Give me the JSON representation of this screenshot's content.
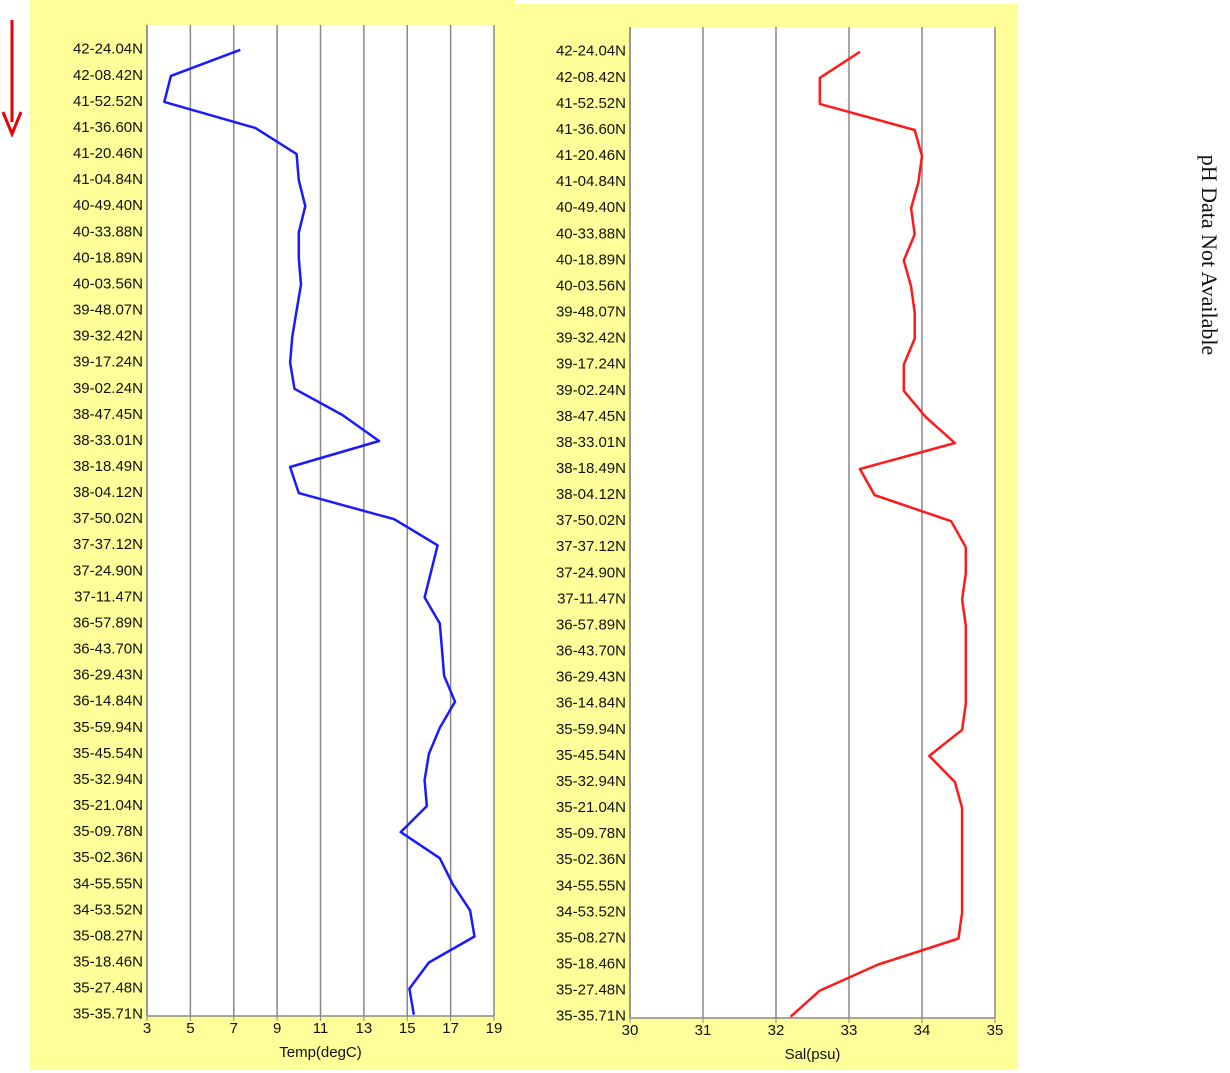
{
  "chart_data": [
    {
      "type": "line",
      "x_label": "Temp(degC)",
      "color": "#1a1aff",
      "categories": [
        "42-24.04N",
        "42-08.42N",
        "41-52.52N",
        "41-36.60N",
        "41-20.46N",
        "41-04.84N",
        "40-49.40N",
        "40-33.88N",
        "40-18.89N",
        "40-03.56N",
        "39-48.07N",
        "39-32.42N",
        "39-17.24N",
        "39-02.24N",
        "38-47.45N",
        "38-33.01N",
        "38-18.49N",
        "38-04.12N",
        "37-50.02N",
        "37-37.12N",
        "37-24.90N",
        "37-11.47N",
        "36-57.89N",
        "36-43.70N",
        "36-29.43N",
        "36-14.84N",
        "35-59.94N",
        "35-45.54N",
        "35-32.94N",
        "35-21.04N",
        "35-09.78N",
        "35-02.36N",
        "34-55.55N",
        "34-53.52N",
        "35-08.27N",
        "35-18.46N",
        "35-27.48N",
        "35-35.71N"
      ],
      "values": [
        7.3,
        4.1,
        3.8,
        8.0,
        9.9,
        10.0,
        10.3,
        10.0,
        10.0,
        10.1,
        9.9,
        9.7,
        9.6,
        9.8,
        12.0,
        13.7,
        9.6,
        10.0,
        14.4,
        16.4,
        16.1,
        15.8,
        16.5,
        16.6,
        16.7,
        17.2,
        16.5,
        16.0,
        15.8,
        15.9,
        14.7,
        16.5,
        17.1,
        17.9,
        18.1,
        16.0,
        15.1,
        15.3
      ],
      "xlim": [
        3,
        19
      ],
      "xticks": [
        3,
        5,
        7,
        9,
        11,
        13,
        15,
        17,
        19
      ],
      "grid": true
    },
    {
      "type": "line",
      "x_label": "Sal(psu)",
      "color": "#ff1a1a",
      "categories": [
        "42-24.04N",
        "42-08.42N",
        "41-52.52N",
        "41-36.60N",
        "41-20.46N",
        "41-04.84N",
        "40-49.40N",
        "40-33.88N",
        "40-18.89N",
        "40-03.56N",
        "39-48.07N",
        "39-32.42N",
        "39-17.24N",
        "39-02.24N",
        "38-47.45N",
        "38-33.01N",
        "38-18.49N",
        "38-04.12N",
        "37-50.02N",
        "37-37.12N",
        "37-24.90N",
        "37-11.47N",
        "36-57.89N",
        "36-43.70N",
        "36-29.43N",
        "36-14.84N",
        "35-59.94N",
        "35-45.54N",
        "35-32.94N",
        "35-21.04N",
        "35-09.78N",
        "35-02.36N",
        "34-55.55N",
        "34-53.52N",
        "35-08.27N",
        "35-18.46N",
        "35-27.48N",
        "35-35.71N"
      ],
      "values": [
        33.15,
        32.6,
        32.6,
        33.9,
        34.0,
        33.95,
        33.85,
        33.9,
        33.75,
        33.85,
        33.9,
        33.9,
        33.75,
        33.75,
        34.05,
        34.45,
        33.15,
        33.35,
        34.4,
        34.6,
        34.6,
        34.55,
        34.6,
        34.6,
        34.6,
        34.6,
        34.55,
        34.1,
        34.45,
        34.55,
        34.55,
        34.55,
        34.55,
        34.55,
        34.5,
        33.4,
        32.6,
        32.2
      ],
      "xlim": [
        30,
        35
      ],
      "xticks": [
        30,
        31,
        32,
        33,
        34,
        35
      ],
      "grid": true
    }
  ],
  "annotation": "pH Data Not Available"
}
